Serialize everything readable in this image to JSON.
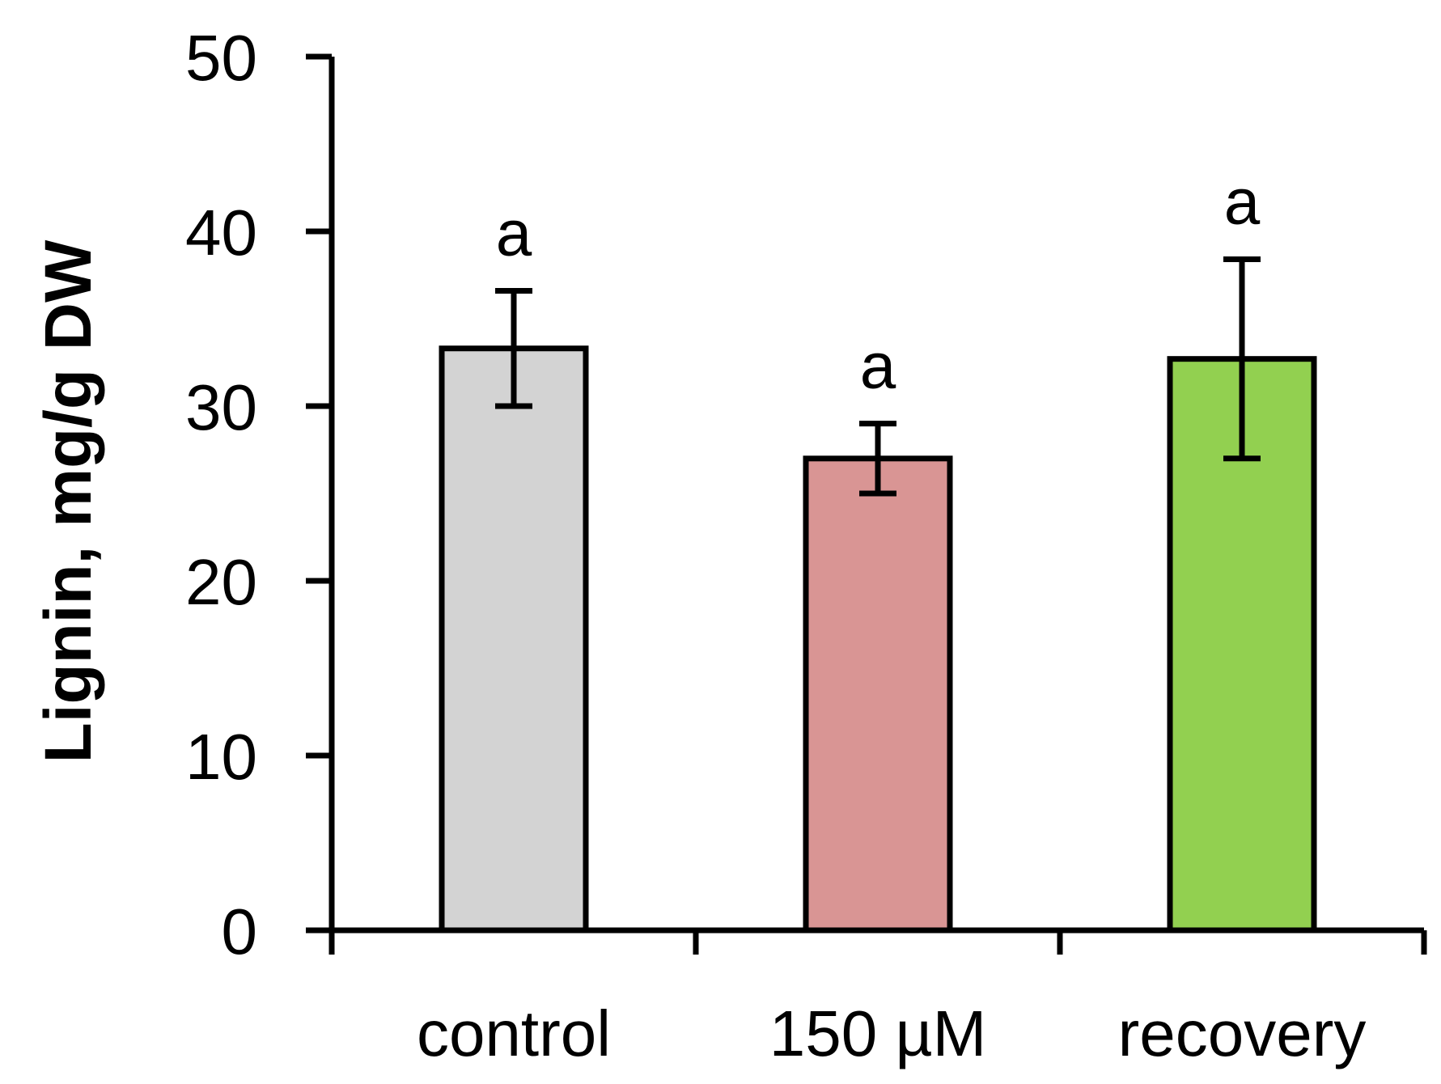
{
  "chart_data": {
    "type": "bar",
    "title": "",
    "xlabel": "",
    "ylabel": "Lignin, mg/g DW",
    "ylim": [
      0,
      50
    ],
    "yticks": [
      "0",
      "10",
      "20",
      "30",
      "40",
      "50"
    ],
    "grid": false,
    "categories": [
      "control",
      "150 µM",
      "recovery"
    ],
    "values": [
      33.3,
      27.0,
      32.7
    ],
    "errors": [
      3.3,
      2.0,
      5.7
    ],
    "significance": [
      "a",
      "a",
      "a"
    ],
    "colors": [
      "#d3d3d3",
      "#d99594",
      "#92d050"
    ]
  }
}
